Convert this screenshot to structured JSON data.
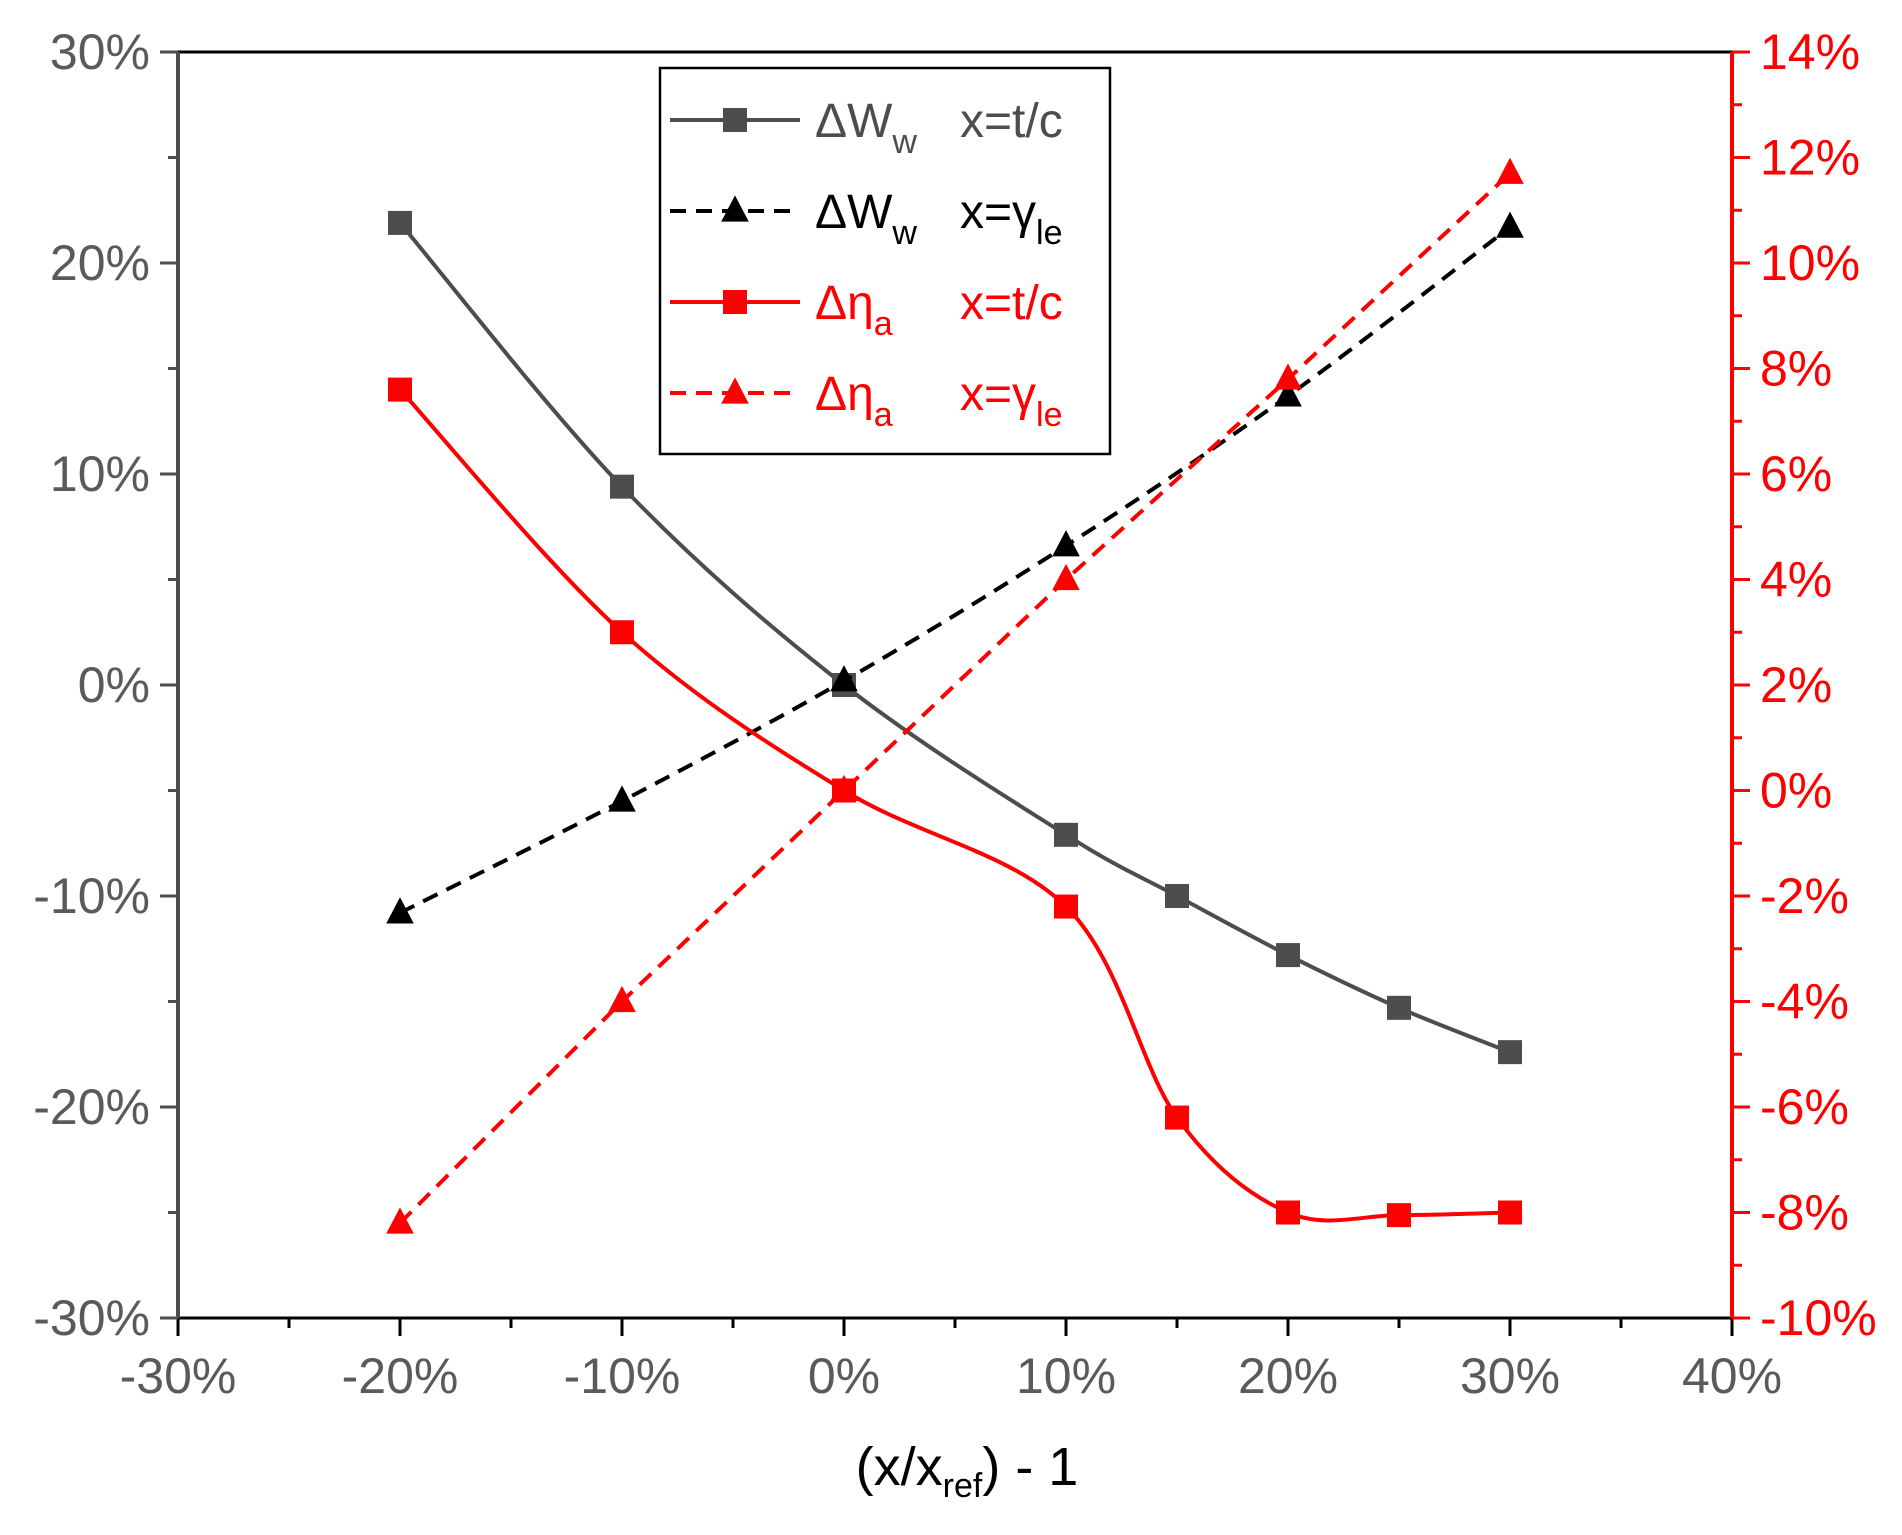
{
  "chart_data": {
    "type": "line",
    "xlabel": {
      "main": "(x/x",
      "sub": "ref",
      "tail": ") - 1"
    },
    "x_axis": {
      "range": [
        -0.3,
        0.4
      ],
      "ticks": [
        -0.3,
        -0.2,
        -0.1,
        0.0,
        0.1,
        0.2,
        0.3,
        0.4
      ],
      "tick_labels": [
        "-30%",
        "-20%",
        "-10%",
        "0%",
        "10%",
        "20%",
        "30%",
        "40%"
      ]
    },
    "y_left": {
      "range": [
        -0.3,
        0.3
      ],
      "ticks": [
        -0.3,
        -0.2,
        -0.1,
        0.0,
        0.1,
        0.2,
        0.3
      ],
      "tick_labels": [
        "-30%",
        "-20%",
        "-10%",
        "0%",
        "10%",
        "20%",
        "30%"
      ],
      "color": "#5a5a5a"
    },
    "y_right": {
      "range": [
        -0.1,
        0.14
      ],
      "ticks": [
        -0.1,
        -0.08,
        -0.06,
        -0.04,
        -0.02,
        0.0,
        0.02,
        0.04,
        0.06,
        0.08,
        0.1,
        0.12,
        0.14
      ],
      "tick_labels": [
        "-10%",
        "-8%",
        "-6%",
        "-4%",
        "-2%",
        "0%",
        "2%",
        "4%",
        "6%",
        "8%",
        "10%",
        "12%",
        "14%"
      ],
      "color": "#ff0000"
    },
    "legend_position": "top-center",
    "series": [
      {
        "name": "ΔWw  x=t/c",
        "legend": {
          "main": "ΔW",
          "sub": "w",
          "label": "x=t/c"
        },
        "axis": "left",
        "color": "#4d4d4d",
        "marker": "square",
        "dash": "solid",
        "curve": "smooth",
        "x": [
          -0.2,
          -0.1,
          0.0,
          0.1,
          0.15,
          0.2,
          0.25,
          0.3
        ],
        "y": [
          0.219,
          0.094,
          0.0,
          -0.071,
          -0.1,
          -0.128,
          -0.153,
          -0.174
        ]
      },
      {
        "name": "ΔWw  x=γle",
        "legend": {
          "main": "ΔW",
          "sub": "w",
          "label": "x=γ",
          "label_sub": "le"
        },
        "axis": "left",
        "color": "#000000",
        "marker": "triangle",
        "dash": "dashed",
        "curve": "smooth",
        "x": [
          -0.2,
          -0.1,
          0.0,
          0.1,
          0.2,
          0.3
        ],
        "y": [
          -0.108,
          -0.055,
          0.002,
          0.066,
          0.137,
          0.217
        ]
      },
      {
        "name": "Δηa  x=t/c",
        "legend": {
          "main": "Δη",
          "sub": "a",
          "label": "x=t/c"
        },
        "axis": "right",
        "color": "#ff0000",
        "marker": "square",
        "dash": "solid",
        "curve": "smooth",
        "x": [
          -0.2,
          -0.1,
          0.0,
          0.1,
          0.15,
          0.2,
          0.25,
          0.3
        ],
        "y": [
          0.076,
          0.03,
          0.0,
          -0.022,
          -0.062,
          -0.08,
          -0.0805,
          -0.08
        ]
      },
      {
        "name": "Δηa  x=γle",
        "legend": {
          "main": "Δη",
          "sub": "a",
          "label": "x=γ",
          "label_sub": "le"
        },
        "axis": "right",
        "color": "#ff0000",
        "marker": "triangle",
        "dash": "dashed",
        "curve": "linear",
        "x": [
          -0.2,
          -0.1,
          0.0,
          0.1,
          0.2,
          0.3
        ],
        "y": [
          -0.082,
          -0.04,
          0.0,
          0.04,
          0.078,
          0.117
        ]
      }
    ]
  }
}
